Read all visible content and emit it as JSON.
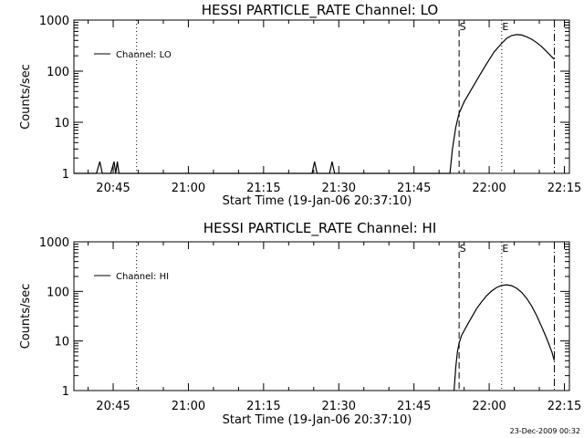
{
  "chart_data": [
    {
      "type": "line",
      "title": "HESSI PARTICLE_RATE Channel: LO",
      "xlabel": "Start Time (19-Jan-06 20:37:10)",
      "ylabel": "Counts/sec",
      "y_scale": "log",
      "ylim": [
        1,
        1000
      ],
      "xlim": [
        "20:37:10",
        "22:16:00"
      ],
      "x_ticks": [
        "20:45",
        "21:00",
        "21:15",
        "21:30",
        "21:45",
        "22:00",
        "22:15"
      ],
      "y_ticks": [
        "1",
        "10",
        "100",
        "1000"
      ],
      "legend": {
        "position": "top-left",
        "label": "Channel: LO"
      },
      "markers": [
        {
          "label": "",
          "time": "20:49:40",
          "style": "dotted"
        },
        {
          "label": "S",
          "time": "21:54:00",
          "style": "dashed"
        },
        {
          "label": "E",
          "time": "22:02:30",
          "style": "dotted"
        },
        {
          "label": "",
          "time": "22:13:00",
          "style": "dash-dot"
        }
      ],
      "series": [
        {
          "name": "Channel: LO",
          "x": [
            "20:37:10",
            "20:41:40",
            "20:42:20",
            "20:42:50",
            "20:44:30",
            "20:45:10",
            "20:45:30",
            "20:45:50",
            "20:46:10",
            "20:46:30",
            "21:24:40",
            "21:25:10",
            "21:25:40",
            "21:28:10",
            "21:28:40",
            "21:29:10",
            "21:52:10",
            "21:52:40",
            "21:53:20",
            "21:54:00",
            "21:55:00",
            "21:56:30",
            "21:58:00",
            "21:59:30",
            "22:01:00",
            "22:02:30",
            "22:03:30",
            "22:04:30",
            "22:05:30",
            "22:06:30",
            "22:07:30",
            "22:08:30",
            "22:09:30",
            "22:10:30",
            "22:11:30",
            "22:12:30",
            "22:13:00"
          ],
          "values": [
            1,
            1,
            1.7,
            1,
            1,
            1.7,
            1,
            1.7,
            1,
            1,
            1,
            1.7,
            1,
            1,
            1.7,
            1,
            1,
            3,
            8,
            15,
            25,
            45,
            80,
            140,
            240,
            350,
            440,
            500,
            520,
            510,
            470,
            420,
            360,
            300,
            240,
            190,
            170
          ]
        }
      ]
    },
    {
      "type": "line",
      "title": "HESSI PARTICLE_RATE Channel: HI",
      "xlabel": "Start Time (19-Jan-06 20:37:10)",
      "ylabel": "Counts/sec",
      "y_scale": "log",
      "ylim": [
        1,
        1000
      ],
      "xlim": [
        "20:37:10",
        "22:16:00"
      ],
      "x_ticks": [
        "20:45",
        "21:00",
        "21:15",
        "21:30",
        "21:45",
        "22:00",
        "22:15"
      ],
      "y_ticks": [
        "1",
        "10",
        "100",
        "1000"
      ],
      "legend": {
        "position": "top-left",
        "label": "Channel: HI"
      },
      "markers": [
        {
          "label": "",
          "time": "20:49:40",
          "style": "dotted"
        },
        {
          "label": "S",
          "time": "21:54:00",
          "style": "dashed"
        },
        {
          "label": "E",
          "time": "22:02:30",
          "style": "dotted"
        },
        {
          "label": "",
          "time": "22:13:00",
          "style": "dash-dot"
        }
      ],
      "series": [
        {
          "name": "Channel: HI",
          "x": [
            "21:53:00",
            "21:53:20",
            "21:53:40",
            "21:54:00",
            "21:54:30",
            "21:55:30",
            "21:56:30",
            "21:57:30",
            "21:58:30",
            "21:59:30",
            "22:00:30",
            "22:01:30",
            "22:02:30",
            "22:03:30",
            "22:04:30",
            "22:05:30",
            "22:06:30",
            "22:07:30",
            "22:08:30",
            "22:09:30",
            "22:10:30",
            "22:11:30",
            "22:12:30",
            "22:13:00"
          ],
          "values": [
            1,
            3,
            6,
            9,
            13,
            20,
            30,
            45,
            62,
            82,
            102,
            120,
            132,
            136,
            130,
            115,
            95,
            72,
            50,
            32,
            19,
            11,
            6,
            4
          ]
        }
      ]
    }
  ],
  "footer": {
    "timestamp": "23-Dec-2009 00:32"
  }
}
